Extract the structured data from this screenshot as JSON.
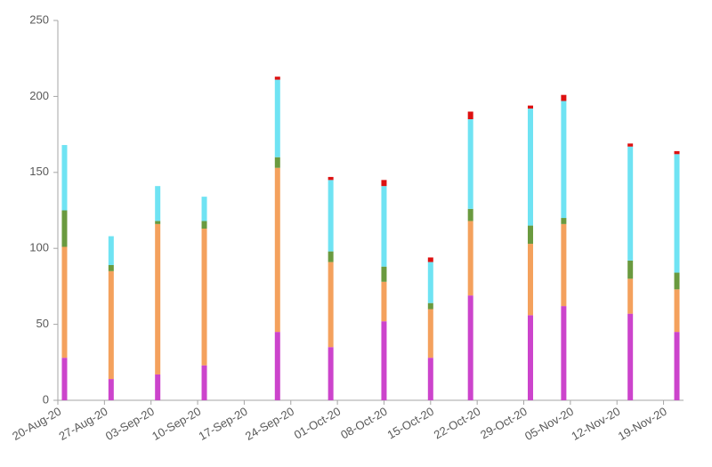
{
  "chart_data": {
    "type": "stacked-bar",
    "x": [
      "2020-08-21",
      "2020-08-28",
      "2020-09-04",
      "2020-09-11",
      "2020-09-22",
      "2020-09-30",
      "2020-10-08",
      "2020-10-15",
      "2020-10-21",
      "2020-10-30",
      "2020-11-04",
      "2020-11-14",
      "2020-11-21"
    ],
    "series": [
      {
        "color": "#cc44cc",
        "values": [
          28,
          14,
          17,
          23,
          45,
          35,
          52,
          28,
          69,
          56,
          62,
          57,
          45
        ]
      },
      {
        "color": "#f4a15d",
        "values": [
          73,
          71,
          99,
          90,
          108,
          56,
          26,
          32,
          49,
          47,
          54,
          23,
          28
        ]
      },
      {
        "color": "#6a9a3f",
        "values": [
          24,
          4,
          2,
          5,
          7,
          7,
          10,
          4,
          8,
          12,
          4,
          12,
          11
        ]
      },
      {
        "color": "#6fe3f3",
        "values": [
          43,
          19,
          23,
          16,
          51,
          47,
          53,
          27,
          59,
          77,
          77,
          75,
          78
        ]
      },
      {
        "color": "#dd1111",
        "values": [
          0,
          0,
          0,
          0,
          2,
          2,
          4,
          3,
          5,
          2,
          4,
          2,
          2
        ]
      }
    ],
    "xlim": [
      "2020-08-20",
      "2020-11-22"
    ],
    "xticks": [
      {
        "value": "2020-08-20",
        "label": "20-Aug-20"
      },
      {
        "value": "2020-08-27",
        "label": "27-Aug-20"
      },
      {
        "value": "2020-09-03",
        "label": "03-Sep-20"
      },
      {
        "value": "2020-09-10",
        "label": "10-Sep-20"
      },
      {
        "value": "2020-09-17",
        "label": "17-Sep-20"
      },
      {
        "value": "2020-09-24",
        "label": "24-Sep-20"
      },
      {
        "value": "2020-10-01",
        "label": "01-Oct-20"
      },
      {
        "value": "2020-10-08",
        "label": "08-Oct-20"
      },
      {
        "value": "2020-10-15",
        "label": "15-Oct-20"
      },
      {
        "value": "2020-10-22",
        "label": "22-Oct-20"
      },
      {
        "value": "2020-10-29",
        "label": "29-Oct-20"
      },
      {
        "value": "2020-11-05",
        "label": "05-Nov-20"
      },
      {
        "value": "2020-11-12",
        "label": "12-Nov-20"
      },
      {
        "value": "2020-11-19",
        "label": "19-Nov-20"
      }
    ],
    "ylim": [
      0,
      250
    ],
    "yticks": [
      0,
      50,
      100,
      150,
      200,
      250
    ],
    "grid": false
  }
}
